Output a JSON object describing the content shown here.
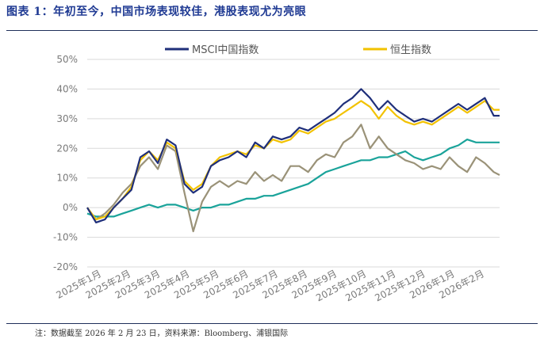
{
  "title": "图表 1：年初至今，中国市场表现较佳，港股表现尤为亮眼",
  "footnote": "注：数据截至 2026 年 2 月 23 日，资料来源：Bloomberg、浦银国际",
  "colors": {
    "msci": "#1f2f7a",
    "hsi": "#f2c200",
    "olive": "#9a9278",
    "teal": "#1aa39a",
    "grid": "#d9d9d9",
    "rule": "#1f2f5a",
    "title": "#1f3a93"
  },
  "chart_data": {
    "type": "line",
    "ylim": [
      -20,
      50
    ],
    "yticks": [
      -20,
      -10,
      0,
      10,
      20,
      30,
      40,
      50
    ],
    "ytick_labels": [
      "-20%",
      "-10%",
      "0%",
      "10%",
      "20%",
      "30%",
      "40%",
      "50%"
    ],
    "x_labels": [
      "2025年1月",
      "2025年2月",
      "2025年3月",
      "2025年4月",
      "2025年5月",
      "2025年6月",
      "2025年7月",
      "2025年8月",
      "2025年9月",
      "2025年10月",
      "2025年11月",
      "2025年12月",
      "2026年1月",
      "2026年2月"
    ],
    "legend_position": "top",
    "series": [
      {
        "name": "MSCI中国指数",
        "color_key": "msci",
        "x": [
          0,
          0.3,
          0.6,
          0.9,
          1.2,
          1.5,
          1.8,
          2.1,
          2.4,
          2.7,
          3.0,
          3.3,
          3.6,
          3.9,
          4.2,
          4.5,
          4.8,
          5.1,
          5.4,
          5.7,
          6.0,
          6.3,
          6.6,
          6.9,
          7.2,
          7.5,
          7.8,
          8.1,
          8.4,
          8.7,
          9.0,
          9.3,
          9.6,
          9.9,
          10.2,
          10.5,
          10.8,
          11.1,
          11.4,
          11.7,
          12.0,
          12.3,
          12.6,
          12.9,
          13.2,
          13.5,
          13.8,
          14.0
        ],
        "values": [
          0,
          -5,
          -4,
          0,
          3,
          6,
          17,
          19,
          15,
          23,
          21,
          8,
          5,
          7,
          14,
          16,
          17,
          19,
          17,
          22,
          20,
          24,
          23,
          24,
          27,
          26,
          28,
          30,
          32,
          35,
          37,
          40,
          37,
          33,
          36,
          33,
          31,
          29,
          30,
          29,
          31,
          33,
          35,
          33,
          35,
          37,
          31,
          31
        ]
      },
      {
        "name": "恒生指数",
        "color_key": "hsi",
        "x": [
          0,
          0.3,
          0.6,
          0.9,
          1.2,
          1.5,
          1.8,
          2.1,
          2.4,
          2.7,
          3.0,
          3.3,
          3.6,
          3.9,
          4.2,
          4.5,
          4.8,
          5.1,
          5.4,
          5.7,
          6.0,
          6.3,
          6.6,
          6.9,
          7.2,
          7.5,
          7.8,
          8.1,
          8.4,
          8.7,
          9.0,
          9.3,
          9.6,
          9.9,
          10.2,
          10.5,
          10.8,
          11.1,
          11.4,
          11.7,
          12.0,
          12.3,
          12.6,
          12.9,
          13.2,
          13.5,
          13.8,
          14.0
        ],
        "values": [
          0,
          -4,
          -3,
          0,
          3,
          7,
          16,
          19,
          16,
          22,
          20,
          9,
          6,
          8,
          14,
          17,
          18,
          19,
          18,
          21,
          20,
          23,
          22,
          23,
          26,
          25,
          27,
          29,
          30,
          32,
          34,
          36,
          34,
          30,
          34,
          31,
          29,
          28,
          29,
          28,
          30,
          32,
          34,
          32,
          34,
          36,
          33,
          33
        ]
      },
      {
        "name": "",
        "color_key": "olive",
        "x": [
          0,
          0.3,
          0.6,
          0.9,
          1.2,
          1.5,
          1.8,
          2.1,
          2.4,
          2.7,
          3.0,
          3.3,
          3.6,
          3.9,
          4.2,
          4.5,
          4.8,
          5.1,
          5.4,
          5.7,
          6.0,
          6.3,
          6.6,
          6.9,
          7.2,
          7.5,
          7.8,
          8.1,
          8.4,
          8.7,
          9.0,
          9.3,
          9.6,
          9.9,
          10.2,
          10.5,
          10.8,
          11.1,
          11.4,
          11.7,
          12.0,
          12.3,
          12.6,
          12.9,
          13.2,
          13.5,
          13.8,
          14.0
        ],
        "values": [
          0,
          -4,
          -2,
          1,
          5,
          8,
          14,
          17,
          13,
          21,
          19,
          5,
          -8,
          2,
          7,
          9,
          7,
          9,
          8,
          12,
          9,
          11,
          9,
          14,
          14,
          12,
          16,
          18,
          17,
          22,
          24,
          28,
          20,
          24,
          20,
          18,
          16,
          15,
          13,
          14,
          13,
          17,
          14,
          12,
          17,
          15,
          12,
          11
        ]
      },
      {
        "name": "",
        "color_key": "teal",
        "x": [
          0,
          0.3,
          0.6,
          0.9,
          1.2,
          1.5,
          1.8,
          2.1,
          2.4,
          2.7,
          3.0,
          3.3,
          3.6,
          3.9,
          4.2,
          4.5,
          4.8,
          5.1,
          5.4,
          5.7,
          6.0,
          6.3,
          6.6,
          6.9,
          7.2,
          7.5,
          7.8,
          8.1,
          8.4,
          8.7,
          9.0,
          9.3,
          9.6,
          9.9,
          10.2,
          10.5,
          10.8,
          11.1,
          11.4,
          11.7,
          12.0,
          12.3,
          12.6,
          12.9,
          13.2,
          13.5,
          13.8,
          14.0
        ],
        "values": [
          -2,
          -3,
          -3,
          -3,
          -2,
          -1,
          0,
          1,
          0,
          1,
          1,
          0,
          -1,
          0,
          0,
          1,
          1,
          2,
          3,
          3,
          4,
          4,
          5,
          6,
          7,
          8,
          10,
          12,
          13,
          14,
          15,
          16,
          16,
          17,
          17,
          18,
          19,
          17,
          16,
          17,
          18,
          20,
          21,
          23,
          22,
          22,
          22,
          22
        ]
      }
    ]
  }
}
